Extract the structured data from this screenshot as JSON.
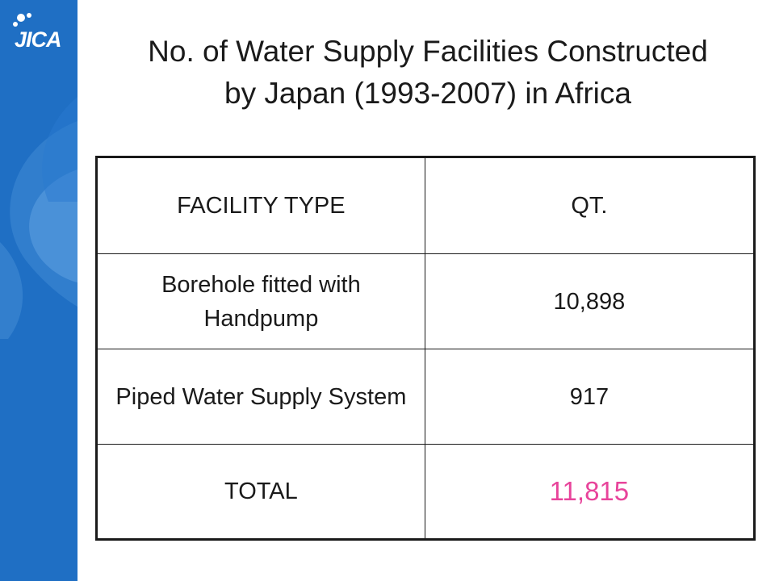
{
  "logo": {
    "text": "JICA",
    "icon": "jica-logo-icon"
  },
  "slide": {
    "title_line1": "No. of Water Supply Facilities Constructed",
    "title_line2": "by Japan (1993-2007) in Africa"
  },
  "table": {
    "headers": {
      "type": "FACILITY TYPE",
      "qty": "QT."
    },
    "rows": [
      {
        "type": "Borehole fitted with Handpump",
        "qty": "10,898"
      },
      {
        "type": "Piped Water Supply System",
        "qty": "917"
      }
    ],
    "total": {
      "label": "TOTAL",
      "qty": "11,815"
    }
  },
  "colors": {
    "sidebar": "#1f6fc4",
    "total_accent": "#e8449b",
    "text": "#1a1a1a"
  }
}
